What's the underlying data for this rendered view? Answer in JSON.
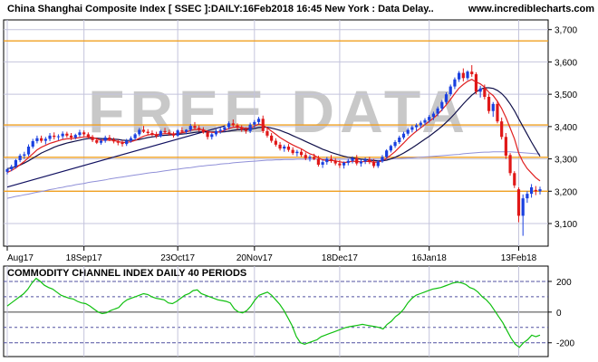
{
  "header": {
    "title": "China Shanghai Composite Index [ SSEC ]:DAILY:16Feb2018 16:45 New York : Data Delay..",
    "site": "www.incrediblecharts.com",
    "watermark": "FREE DATA"
  },
  "chart_data": [
    {
      "type": "candlestick",
      "title": "China Shanghai Composite Index [ SSEC ]:DAILY:16Feb2018 16:45 New York : Data Delay..",
      "x_tick_labels": [
        "Aug17",
        "18Sep17",
        "23Oct17",
        "20Nov17",
        "18Dec17",
        "16Jan18",
        "13Feb18"
      ],
      "y_tick_labels": [
        "3,100",
        "3,200",
        "3,300",
        "3,400",
        "3,500",
        "3,600",
        "3,700"
      ],
      "ylim": [
        3030,
        3730
      ],
      "horizontal_lines": [
        3200,
        3305,
        3405,
        3665
      ],
      "trendline": {
        "from": [
          0,
          3213
        ],
        "to": [
          51,
          3402
        ]
      },
      "ohlc": [
        [
          3260,
          3272,
          3252,
          3268
        ],
        [
          3268,
          3282,
          3262,
          3276
        ],
        [
          3276,
          3300,
          3270,
          3296
        ],
        [
          3296,
          3316,
          3290,
          3310
        ],
        [
          3310,
          3322,
          3300,
          3314
        ],
        [
          3314,
          3345,
          3308,
          3338
        ],
        [
          3338,
          3362,
          3332,
          3355
        ],
        [
          3355,
          3372,
          3348,
          3364
        ],
        [
          3364,
          3372,
          3350,
          3356
        ],
        [
          3356,
          3368,
          3345,
          3362
        ],
        [
          3362,
          3380,
          3355,
          3372
        ],
        [
          3372,
          3382,
          3360,
          3368
        ],
        [
          3368,
          3376,
          3358,
          3370
        ],
        [
          3370,
          3385,
          3362,
          3378
        ],
        [
          3378,
          3384,
          3366,
          3372
        ],
        [
          3372,
          3380,
          3358,
          3366
        ],
        [
          3366,
          3378,
          3360,
          3374
        ],
        [
          3374,
          3390,
          3368,
          3382
        ],
        [
          3382,
          3388,
          3370,
          3376
        ],
        [
          3376,
          3382,
          3362,
          3368
        ],
        [
          3368,
          3374,
          3352,
          3358
        ],
        [
          3358,
          3366,
          3346,
          3350
        ],
        [
          3350,
          3362,
          3344,
          3356
        ],
        [
          3356,
          3372,
          3350,
          3366
        ],
        [
          3366,
          3374,
          3355,
          3360
        ],
        [
          3360,
          3366,
          3348,
          3354
        ],
        [
          3354,
          3360,
          3342,
          3350
        ],
        [
          3350,
          3358,
          3338,
          3346
        ],
        [
          3346,
          3362,
          3340,
          3356
        ],
        [
          3356,
          3370,
          3350,
          3364
        ],
        [
          3364,
          3380,
          3358,
          3376
        ],
        [
          3376,
          3396,
          3370,
          3390
        ],
        [
          3390,
          3402,
          3380,
          3384
        ],
        [
          3384,
          3392,
          3374,
          3380
        ],
        [
          3380,
          3388,
          3370,
          3376
        ],
        [
          3376,
          3384,
          3364,
          3370
        ],
        [
          3370,
          3390,
          3366,
          3386
        ],
        [
          3386,
          3396,
          3378,
          3382
        ],
        [
          3382,
          3390,
          3372,
          3378
        ],
        [
          3378,
          3384,
          3366,
          3372
        ],
        [
          3372,
          3392,
          3368,
          3388
        ],
        [
          3388,
          3398,
          3380,
          3384
        ],
        [
          3384,
          3392,
          3376,
          3390
        ],
        [
          3390,
          3408,
          3384,
          3402
        ],
        [
          3402,
          3414,
          3392,
          3396
        ],
        [
          3396,
          3404,
          3384,
          3390
        ],
        [
          3390,
          3398,
          3378,
          3382
        ],
        [
          3382,
          3388,
          3360,
          3368
        ],
        [
          3368,
          3380,
          3360,
          3376
        ],
        [
          3376,
          3392,
          3370,
          3386
        ],
        [
          3386,
          3398,
          3378,
          3390
        ],
        [
          3390,
          3404,
          3384,
          3398
        ],
        [
          3398,
          3416,
          3392,
          3410
        ],
        [
          3410,
          3422,
          3400,
          3404
        ],
        [
          3404,
          3410,
          3390,
          3396
        ],
        [
          3396,
          3404,
          3384,
          3390
        ],
        [
          3390,
          3398,
          3378,
          3386
        ],
        [
          3386,
          3412,
          3380,
          3406
        ],
        [
          3406,
          3420,
          3396,
          3414
        ],
        [
          3414,
          3430,
          3406,
          3424
        ],
        [
          3424,
          3434,
          3380,
          3386
        ],
        [
          3386,
          3398,
          3366,
          3372
        ],
        [
          3372,
          3380,
          3350,
          3356
        ],
        [
          3356,
          3364,
          3338,
          3344
        ],
        [
          3344,
          3352,
          3326,
          3332
        ],
        [
          3332,
          3344,
          3322,
          3338
        ],
        [
          3338,
          3346,
          3322,
          3328
        ],
        [
          3328,
          3336,
          3312,
          3318
        ],
        [
          3318,
          3328,
          3308,
          3322
        ],
        [
          3322,
          3330,
          3306,
          3312
        ],
        [
          3312,
          3320,
          3296,
          3302
        ],
        [
          3302,
          3312,
          3292,
          3306
        ],
        [
          3306,
          3316,
          3296,
          3300
        ],
        [
          3300,
          3310,
          3276,
          3282
        ],
        [
          3282,
          3296,
          3272,
          3290
        ],
        [
          3290,
          3306,
          3282,
          3300
        ],
        [
          3300,
          3312,
          3288,
          3294
        ],
        [
          3294,
          3302,
          3280,
          3286
        ],
        [
          3286,
          3296,
          3272,
          3280
        ],
        [
          3280,
          3292,
          3270,
          3288
        ],
        [
          3288,
          3300,
          3280,
          3294
        ],
        [
          3294,
          3308,
          3286,
          3302
        ],
        [
          3302,
          3312,
          3280,
          3286
        ],
        [
          3286,
          3298,
          3276,
          3292
        ],
        [
          3292,
          3304,
          3284,
          3298
        ],
        [
          3298,
          3306,
          3284,
          3290
        ],
        [
          3290,
          3300,
          3272,
          3278
        ],
        [
          3278,
          3296,
          3272,
          3292
        ],
        [
          3292,
          3312,
          3288,
          3306
        ],
        [
          3306,
          3330,
          3302,
          3326
        ],
        [
          3326,
          3344,
          3320,
          3340
        ],
        [
          3340,
          3358,
          3334,
          3352
        ],
        [
          3352,
          3372,
          3346,
          3366
        ],
        [
          3366,
          3384,
          3360,
          3378
        ],
        [
          3378,
          3396,
          3372,
          3390
        ],
        [
          3390,
          3404,
          3382,
          3398
        ],
        [
          3398,
          3410,
          3386,
          3404
        ],
        [
          3404,
          3418,
          3396,
          3412
        ],
        [
          3412,
          3426,
          3404,
          3420
        ],
        [
          3420,
          3436,
          3412,
          3430
        ],
        [
          3430,
          3446,
          3420,
          3440
        ],
        [
          3440,
          3462,
          3432,
          3456
        ],
        [
          3456,
          3482,
          3448,
          3476
        ],
        [
          3476,
          3506,
          3470,
          3500
        ],
        [
          3500,
          3530,
          3494,
          3524
        ],
        [
          3524,
          3552,
          3516,
          3546
        ],
        [
          3546,
          3572,
          3538,
          3566
        ],
        [
          3566,
          3580,
          3540,
          3550
        ],
        [
          3550,
          3574,
          3544,
          3570
        ],
        [
          3570,
          3590,
          3554,
          3562
        ],
        [
          3562,
          3568,
          3500,
          3508
        ],
        [
          3508,
          3526,
          3490,
          3518
        ],
        [
          3518,
          3530,
          3484,
          3492
        ],
        [
          3492,
          3502,
          3440,
          3448
        ],
        [
          3448,
          3476,
          3430,
          3470
        ],
        [
          3470,
          3480,
          3410,
          3416
        ],
        [
          3416,
          3428,
          3360,
          3368
        ],
        [
          3368,
          3380,
          3300,
          3310
        ],
        [
          3312,
          3318,
          3248,
          3256
        ],
        [
          3256,
          3262,
          3210,
          3218
        ],
        [
          3206,
          3212,
          3104,
          3124
        ],
        [
          3124,
          3190,
          3062,
          3178
        ],
        [
          3178,
          3200,
          3164,
          3192
        ],
        [
          3192,
          3222,
          3180,
          3212
        ],
        [
          3204,
          3216,
          3188,
          3200
        ],
        [
          3200,
          3214,
          3190,
          3206
        ]
      ],
      "ma_fast": [
        3258,
        3264,
        3272,
        3282,
        3292,
        3304,
        3316,
        3328,
        3336,
        3342,
        3348,
        3352,
        3356,
        3360,
        3362,
        3363,
        3364,
        3366,
        3368,
        3368,
        3366,
        3362,
        3358,
        3358,
        3358,
        3357,
        3354,
        3351,
        3351,
        3353,
        3357,
        3364,
        3370,
        3374,
        3376,
        3375,
        3377,
        3378,
        3378,
        3377,
        3379,
        3381,
        3383,
        3388,
        3391,
        3391,
        3390,
        3385,
        3382,
        3382,
        3384,
        3388,
        3394,
        3398,
        3399,
        3397,
        3394,
        3396,
        3401,
        3408,
        3404,
        3396,
        3386,
        3376,
        3366,
        3358,
        3350,
        3343,
        3337,
        3331,
        3323,
        3316,
        3311,
        3303,
        3297,
        3295,
        3295,
        3294,
        3291,
        3289,
        3290,
        3293,
        3292,
        3291,
        3292,
        3292,
        3290,
        3290,
        3294,
        3302,
        3312,
        3323,
        3336,
        3349,
        3363,
        3375,
        3386,
        3396,
        3406,
        3416,
        3426,
        3438,
        3452,
        3467,
        3484,
        3502,
        3519,
        3530,
        3540,
        3546,
        3538,
        3532,
        3522,
        3506,
        3496,
        3478,
        3456,
        3428,
        3395,
        3362,
        3318,
        3290,
        3270,
        3256,
        3242,
        3232
      ],
      "ma_slow": [
        3270,
        3272,
        3276,
        3281,
        3287,
        3294,
        3302,
        3310,
        3318,
        3324,
        3330,
        3336,
        3341,
        3345,
        3349,
        3352,
        3355,
        3358,
        3361,
        3363,
        3364,
        3364,
        3363,
        3362,
        3362,
        3361,
        3360,
        3358,
        3357,
        3357,
        3358,
        3360,
        3363,
        3366,
        3368,
        3370,
        3372,
        3373,
        3374,
        3375,
        3376,
        3377,
        3378,
        3380,
        3382,
        3383,
        3384,
        3383,
        3383,
        3383,
        3383,
        3384,
        3386,
        3388,
        3390,
        3391,
        3391,
        3392,
        3394,
        3397,
        3398,
        3398,
        3395,
        3392,
        3388,
        3383,
        3378,
        3372,
        3366,
        3360,
        3354,
        3348,
        3342,
        3336,
        3330,
        3325,
        3320,
        3316,
        3312,
        3308,
        3305,
        3303,
        3301,
        3299,
        3298,
        3296,
        3295,
        3294,
        3294,
        3296,
        3300,
        3305,
        3311,
        3318,
        3326,
        3334,
        3343,
        3352,
        3361,
        3370,
        3380,
        3390,
        3401,
        3413,
        3426,
        3440,
        3455,
        3470,
        3484,
        3497,
        3507,
        3515,
        3520,
        3520,
        3518,
        3512,
        3502,
        3488,
        3470,
        3449,
        3424,
        3400,
        3376,
        3352,
        3330,
        3308
      ],
      "ma_long": [
        3178,
        3181,
        3184,
        3186,
        3189,
        3191,
        3194,
        3197,
        3199,
        3202,
        3205,
        3207,
        3210,
        3212,
        3215,
        3217,
        3220,
        3222,
        3224,
        3227,
        3229,
        3231,
        3233,
        3235,
        3238,
        3240,
        3242,
        3244,
        3246,
        3248,
        3250,
        3252,
        3254,
        3256,
        3258,
        3259,
        3261,
        3263,
        3265,
        3267,
        3268,
        3270,
        3272,
        3273,
        3275,
        3277,
        3278,
        3280,
        3281,
        3282,
        3284,
        3285,
        3286,
        3288,
        3289,
        3290,
        3291,
        3292,
        3293,
        3294,
        3295,
        3296,
        3296,
        3297,
        3297,
        3298,
        3298,
        3298,
        3299,
        3299,
        3299,
        3299,
        3299,
        3299,
        3299,
        3299,
        3299,
        3299,
        3299,
        3299,
        3299,
        3299,
        3299,
        3299,
        3299,
        3299,
        3299,
        3299,
        3299,
        3300,
        3300,
        3301,
        3301,
        3302,
        3303,
        3303,
        3304,
        3305,
        3306,
        3307,
        3308,
        3309,
        3310,
        3311,
        3312,
        3313,
        3314,
        3316,
        3317,
        3318,
        3319,
        3320,
        3321,
        3321,
        3322,
        3322,
        3322,
        3322,
        3322,
        3321,
        3320,
        3319,
        3318,
        3317,
        3316,
        3315
      ]
    },
    {
      "type": "line",
      "title": "COMMODITY CHANNEL INDEX DAILY 40 PERIODS",
      "y_tick_labels": [
        "200",
        "0",
        "-200"
      ],
      "ylim": [
        -290,
        300
      ],
      "reference_levels": [
        200,
        100,
        0,
        -100,
        -200
      ],
      "values": [
        40,
        60,
        80,
        100,
        120,
        150,
        190,
        220,
        200,
        175,
        160,
        150,
        130,
        110,
        100,
        90,
        85,
        70,
        60,
        55,
        40,
        20,
        0,
        -10,
        -5,
        10,
        20,
        30,
        60,
        80,
        90,
        100,
        110,
        120,
        115,
        100,
        90,
        85,
        80,
        60,
        55,
        70,
        90,
        110,
        120,
        140,
        145,
        120,
        110,
        100,
        90,
        80,
        75,
        70,
        60,
        20,
        0,
        -5,
        10,
        40,
        80,
        110,
        120,
        130,
        110,
        80,
        50,
        10,
        -40,
        -90,
        -160,
        -200,
        -210,
        -200,
        -190,
        -180,
        -160,
        -150,
        -140,
        -130,
        -120,
        -110,
        -100,
        -95,
        -90,
        -85,
        -80,
        -85,
        -90,
        -95,
        -100,
        -110,
        -80,
        -60,
        -30,
        -10,
        20,
        60,
        90,
        110,
        120,
        130,
        140,
        150,
        155,
        160,
        170,
        180,
        190,
        195,
        190,
        180,
        160,
        150,
        130,
        100,
        80,
        50,
        10,
        -30,
        -70,
        -120,
        -170,
        -210,
        -230,
        -200,
        -180,
        -150,
        -160,
        -150
      ]
    }
  ]
}
